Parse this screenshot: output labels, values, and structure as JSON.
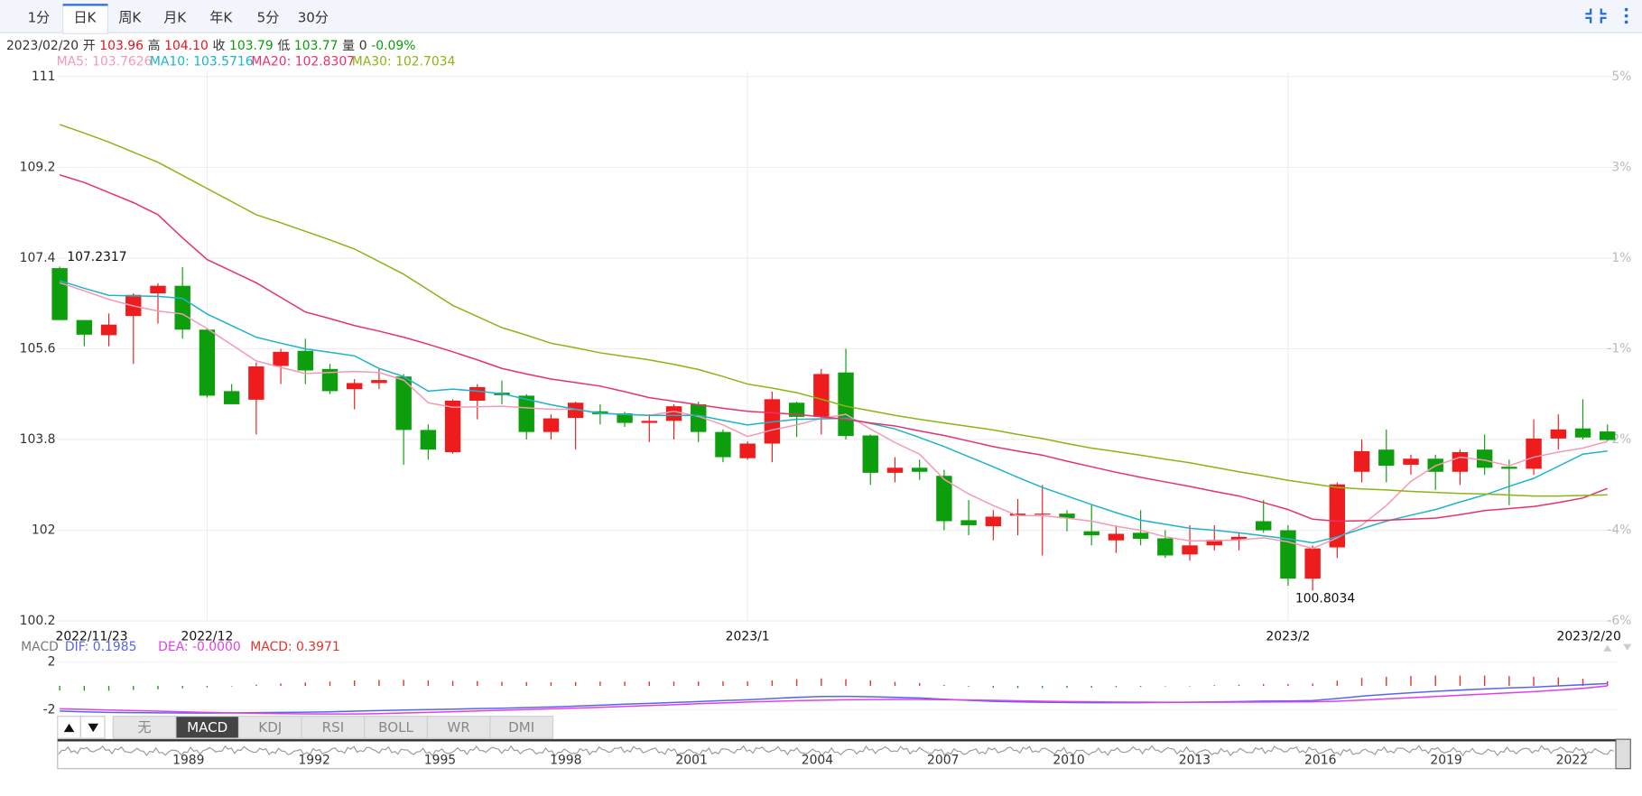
{
  "tabs": [
    "1分",
    "日K",
    "周K",
    "月K",
    "年K",
    "5分",
    "30分"
  ],
  "info": {
    "date": "2023/02/20",
    "open_label": "开",
    "open": "103.96",
    "high_label": "高",
    "high": "104.10",
    "close_label": "收",
    "close": "103.79",
    "low_label": "低",
    "low": "103.77",
    "volume_label": "量",
    "volume": "0",
    "change": "-0.09%"
  },
  "chart_data": [
    {
      "type": "candlestick",
      "categories": [
        "2022/11/23",
        null,
        null,
        null,
        null,
        null,
        "2022/12",
        null,
        null,
        null,
        null,
        null,
        null,
        null,
        null,
        null,
        null,
        null,
        null,
        null,
        null,
        null,
        null,
        null,
        null,
        null,
        null,
        null,
        "2023/1",
        null,
        null,
        null,
        null,
        null,
        null,
        null,
        null,
        null,
        null,
        null,
        null,
        null,
        null,
        null,
        null,
        null,
        null,
        null,
        null,
        null,
        "2023/2",
        null,
        null,
        null,
        null,
        null,
        null,
        null,
        null,
        null,
        null,
        null,
        null,
        "2023/2/20"
      ],
      "open": [
        107.2,
        106.17,
        105.87,
        106.25,
        106.7,
        106.85,
        105.98,
        104.76,
        104.59,
        105.26,
        105.56,
        105.2,
        104.8,
        104.92,
        105.05,
        103.99,
        103.55,
        104.57,
        104.73,
        104.67,
        103.95,
        104.23,
        104.36,
        104.32,
        104.13,
        104.17,
        104.5,
        103.95,
        103.43,
        103.72,
        104.53,
        104.25,
        105.13,
        103.88,
        103.14,
        103.24,
        103.08,
        102.2,
        102.08,
        102.29,
        102.31,
        102.33,
        101.98,
        101.8,
        101.95,
        101.84,
        101.52,
        101.7,
        101.81,
        102.18,
        102.0,
        101.04,
        101.66,
        103.16,
        103.6,
        103.3,
        103.42,
        103.16,
        103.6,
        103.26,
        103.22,
        103.82,
        104.02,
        103.96
      ],
      "high": [
        107.2317,
        106.17,
        106.3,
        106.7,
        106.9,
        107.22,
        106.0,
        104.9,
        105.33,
        105.6,
        105.8,
        105.3,
        105.0,
        105.2,
        105.1,
        104.1,
        104.6,
        104.9,
        104.97,
        104.7,
        104.3,
        104.55,
        104.5,
        104.35,
        104.3,
        104.5,
        104.55,
        104.0,
        103.76,
        104.75,
        104.55,
        105.2,
        105.6,
        103.9,
        103.45,
        103.4,
        103.2,
        102.6,
        102.4,
        102.62,
        102.9,
        102.4,
        102.5,
        102.1,
        102.4,
        102.0,
        102.1,
        102.1,
        101.95,
        102.6,
        102.1,
        101.7,
        102.95,
        103.8,
        104.0,
        103.5,
        103.5,
        103.6,
        103.9,
        103.4,
        104.2,
        104.3,
        104.6,
        104.1
      ],
      "low": [
        106.17,
        105.65,
        105.65,
        105.3,
        106.1,
        105.8,
        104.63,
        104.5,
        103.9,
        104.9,
        104.9,
        104.7,
        104.4,
        104.8,
        103.3,
        103.4,
        103.52,
        104.2,
        104.5,
        103.8,
        103.8,
        103.6,
        104.1,
        104.05,
        103.75,
        103.8,
        103.75,
        103.35,
        103.4,
        103.35,
        103.85,
        103.9,
        103.8,
        102.9,
        102.95,
        103.0,
        102.0,
        101.9,
        101.8,
        101.9,
        101.5,
        101.98,
        101.7,
        101.55,
        101.7,
        101.45,
        101.4,
        101.6,
        101.6,
        101.95,
        100.9,
        100.8034,
        101.45,
        102.95,
        102.95,
        103.1,
        102.8,
        102.9,
        103.1,
        102.5,
        103.1,
        103.6,
        103.8,
        103.77
      ],
      "close": [
        106.17,
        105.88,
        106.08,
        106.67,
        106.85,
        105.98,
        104.67,
        104.5,
        105.25,
        105.54,
        105.17,
        104.76,
        104.92,
        104.98,
        103.99,
        103.6,
        104.57,
        104.84,
        104.68,
        103.95,
        104.22,
        104.53,
        104.3,
        104.13,
        104.17,
        104.46,
        103.95,
        103.45,
        103.72,
        104.6,
        104.25,
        105.1,
        103.87,
        103.14,
        103.24,
        103.16,
        102.18,
        102.1,
        102.27,
        102.33,
        102.33,
        102.24,
        101.9,
        101.93,
        101.83,
        101.5,
        101.7,
        101.81,
        101.87,
        102.0,
        101.04,
        101.64,
        102.91,
        103.57,
        103.28,
        103.42,
        103.16,
        103.55,
        103.24,
        103.22,
        103.82,
        104.0,
        103.84,
        103.79
      ],
      "up_color": "#ee1c1c",
      "down_color": "#0c9e0c",
      "max_label": "107.2317",
      "min_label": "100.8034",
      "ylim": [
        100.2,
        111
      ],
      "yticks": [
        111,
        109.2,
        107.4,
        105.6,
        103.8,
        102,
        100.2
      ],
      "y2tick_labels": [
        "5%",
        "3%",
        "1%",
        "-1%",
        "-2%",
        "-4%",
        "-6%"
      ],
      "grid": true,
      "series": [
        {
          "name": "MA5: 103.7626",
          "color": "#f49ab4",
          "values": [
            106.91,
            106.75,
            106.58,
            106.45,
            106.35,
            106.29,
            106.0,
            105.68,
            105.36,
            105.23,
            105.11,
            105.13,
            105.15,
            105.13,
            104.98,
            104.53,
            104.44,
            104.45,
            104.46,
            104.43,
            104.4,
            104.4,
            104.32,
            104.3,
            104.28,
            104.36,
            104.26,
            104.09,
            103.86,
            103.99,
            104.09,
            104.22,
            104.3,
            104.01,
            103.74,
            103.51,
            103.01,
            102.72,
            102.49,
            102.29,
            102.29,
            102.24,
            102.18,
            102.08,
            102.0,
            101.87,
            101.79,
            101.79,
            101.81,
            101.85,
            101.77,
            101.64,
            101.85,
            102.1,
            102.49,
            102.97,
            103.28,
            103.45,
            103.39,
            103.28,
            103.45,
            103.55,
            103.63,
            103.7626
          ]
        },
        {
          "name": "MA10: 103.5716",
          "color": "#1cb4cc",
          "values": [
            106.95,
            106.8,
            106.66,
            106.65,
            106.64,
            106.6,
            106.29,
            106.06,
            105.83,
            105.71,
            105.6,
            105.53,
            105.46,
            105.21,
            105.05,
            104.76,
            104.8,
            104.76,
            104.71,
            104.6,
            104.49,
            104.4,
            104.32,
            104.3,
            104.28,
            104.28,
            104.28,
            104.18,
            104.09,
            104.15,
            104.2,
            104.21,
            104.22,
            104.12,
            104.01,
            103.84,
            103.66,
            103.46,
            103.26,
            103.05,
            102.85,
            102.68,
            102.51,
            102.35,
            102.2,
            102.12,
            102.04,
            102.0,
            101.95,
            101.89,
            101.83,
            101.75,
            101.87,
            102.03,
            102.18,
            102.3,
            102.41,
            102.56,
            102.7,
            102.87,
            103.03,
            103.27,
            103.51,
            103.5716
          ]
        },
        {
          "name": "MA20: 102.8307",
          "color": "#e6336a",
          "values": [
            109.05,
            108.9,
            108.7,
            108.5,
            108.26,
            107.8,
            107.37,
            107.14,
            106.91,
            106.62,
            106.33,
            106.2,
            106.06,
            105.95,
            105.83,
            105.69,
            105.54,
            105.38,
            105.21,
            105.1,
            105.0,
            104.93,
            104.86,
            104.75,
            104.63,
            104.56,
            104.49,
            104.42,
            104.36,
            104.33,
            104.3,
            104.25,
            104.2,
            104.13,
            104.07,
            103.97,
            103.88,
            103.77,
            103.66,
            103.57,
            103.49,
            103.37,
            103.26,
            103.15,
            103.05,
            102.96,
            102.87,
            102.77,
            102.68,
            102.55,
            102.41,
            102.22,
            102.18,
            102.19,
            102.2,
            102.22,
            102.24,
            102.31,
            102.39,
            102.43,
            102.47,
            102.55,
            102.64,
            102.8307
          ]
        },
        {
          "name": "MA30: 102.7034",
          "color": "#8cb414",
          "values": [
            110.05,
            109.88,
            109.7,
            109.5,
            109.3,
            109.04,
            108.78,
            108.52,
            108.26,
            108.1,
            107.93,
            107.76,
            107.58,
            107.33,
            107.08,
            106.77,
            106.46,
            106.24,
            106.02,
            105.87,
            105.71,
            105.62,
            105.52,
            105.45,
            105.38,
            105.29,
            105.19,
            105.05,
            104.9,
            104.82,
            104.73,
            104.6,
            104.46,
            104.37,
            104.28,
            104.2,
            104.13,
            104.06,
            103.99,
            103.9,
            103.82,
            103.72,
            103.63,
            103.56,
            103.49,
            103.41,
            103.34,
            103.25,
            103.16,
            103.08,
            102.99,
            102.92,
            102.85,
            102.82,
            102.8,
            102.77,
            102.75,
            102.73,
            102.72,
            102.7,
            102.68,
            102.68,
            102.69,
            102.7034
          ]
        }
      ]
    },
    {
      "type": "macd",
      "title": "MACD",
      "ylim": [
        -3,
        3
      ],
      "yticks": [
        2,
        -2
      ],
      "histogram": {
        "name": "MACD: 0.3971",
        "up_color": "#e0342c",
        "down_color": "#1a9e1a",
        "values": [
          -0.38,
          -0.4,
          -0.4,
          -0.34,
          -0.28,
          -0.2,
          -0.12,
          -0.02,
          0.1,
          0.2,
          0.28,
          0.36,
          0.46,
          0.5,
          0.5,
          0.46,
          0.42,
          0.4,
          0.34,
          0.32,
          0.3,
          0.32,
          0.36,
          0.36,
          0.36,
          0.36,
          0.36,
          0.38,
          0.38,
          0.46,
          0.56,
          0.62,
          0.56,
          0.46,
          0.34,
          0.24,
          0.08,
          -0.06,
          -0.16,
          -0.18,
          -0.18,
          -0.16,
          -0.14,
          -0.1,
          -0.08,
          -0.04,
          0.0,
          0.06,
          0.1,
          0.16,
          0.16,
          0.2,
          0.44,
          0.66,
          0.76,
          0.82,
          0.86,
          0.86,
          0.86,
          0.82,
          0.76,
          0.7,
          0.6,
          0.3971
        ]
      },
      "series": [
        {
          "name": "DIF: 0.1985",
          "color": "#5866ee",
          "values": [
            -2.09,
            -2.15,
            -2.2,
            -2.22,
            -2.24,
            -2.25,
            -2.26,
            -2.25,
            -2.22,
            -2.2,
            -2.18,
            -2.15,
            -2.1,
            -2.05,
            -2.0,
            -1.97,
            -1.93,
            -1.88,
            -1.85,
            -1.8,
            -1.75,
            -1.68,
            -1.6,
            -1.52,
            -1.45,
            -1.38,
            -1.3,
            -1.22,
            -1.15,
            -1.05,
            -0.95,
            -0.88,
            -0.87,
            -0.9,
            -0.95,
            -1.0,
            -1.1,
            -1.2,
            -1.28,
            -1.33,
            -1.36,
            -1.38,
            -1.39,
            -1.39,
            -1.39,
            -1.38,
            -1.36,
            -1.33,
            -1.3,
            -1.26,
            -1.25,
            -1.22,
            -1.05,
            -0.85,
            -0.7,
            -0.57,
            -0.45,
            -0.35,
            -0.25,
            -0.17,
            -0.1,
            0.0,
            0.1,
            0.1985
          ]
        },
        {
          "name": "DEA: -0.0000",
          "color": "#e040e8",
          "values": [
            -1.9,
            -1.95,
            -2.0,
            -2.05,
            -2.1,
            -2.15,
            -2.2,
            -2.24,
            -2.27,
            -2.3,
            -2.32,
            -2.33,
            -2.33,
            -2.3,
            -2.25,
            -2.2,
            -2.14,
            -2.08,
            -2.02,
            -1.96,
            -1.9,
            -1.84,
            -1.78,
            -1.7,
            -1.63,
            -1.56,
            -1.48,
            -1.41,
            -1.34,
            -1.28,
            -1.23,
            -1.19,
            -1.15,
            -1.13,
            -1.12,
            -1.12,
            -1.14,
            -1.17,
            -1.2,
            -1.24,
            -1.27,
            -1.3,
            -1.32,
            -1.34,
            -1.35,
            -1.36,
            -1.36,
            -1.36,
            -1.35,
            -1.34,
            -1.33,
            -1.32,
            -1.27,
            -1.18,
            -1.08,
            -0.98,
            -0.88,
            -0.78,
            -0.68,
            -0.58,
            -0.48,
            -0.35,
            -0.2,
            0
          ]
        }
      ]
    }
  ],
  "indicator_tabs": [
    "无",
    "MACD",
    "KDJ",
    "RSI",
    "BOLL",
    "WR",
    "DMI"
  ],
  "navigator": {
    "years": [
      "1989",
      "1992",
      "1995",
      "1998",
      "2001",
      "2004",
      "2007",
      "2010",
      "2013",
      "2016",
      "2019",
      "2022"
    ]
  }
}
